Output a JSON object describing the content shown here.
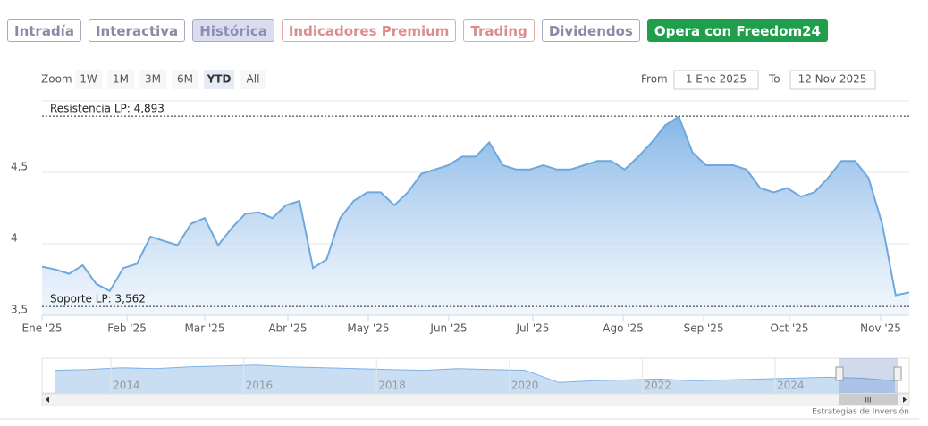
{
  "tabs": [
    "Intradía",
    "Interactiva",
    "Histórica",
    "Indicadores Premium",
    "Trading",
    "Dividendos",
    "Opera con Freedom24"
  ],
  "active_tab": 2,
  "zoom": {
    "label": "Zoom",
    "buttons": [
      "1W",
      "1M",
      "3M",
      "6M",
      "YTD",
      "All"
    ],
    "active": 4
  },
  "range": {
    "from_label": "From",
    "from": "1 Ene 2025",
    "to_label": "To",
    "to": "12 Nov 2025"
  },
  "chart_data": {
    "type": "area",
    "color": "#6fa8dc",
    "values": [
      3.84,
      3.82,
      3.79,
      3.85,
      3.72,
      3.67,
      3.83,
      3.86,
      4.05,
      4.02,
      3.99,
      4.14,
      4.18,
      3.99,
      4.11,
      4.21,
      4.22,
      4.18,
      4.27,
      4.3,
      3.83,
      3.89,
      4.18,
      4.3,
      4.36,
      4.36,
      4.27,
      4.36,
      4.49,
      4.52,
      4.55,
      4.61,
      4.61,
      4.71,
      4.55,
      4.52,
      4.52,
      4.55,
      4.52,
      4.52,
      4.55,
      4.58,
      4.58,
      4.52,
      4.61,
      4.71,
      4.83,
      4.89,
      4.64,
      4.55,
      4.55,
      4.55,
      4.52,
      4.39,
      4.36,
      4.39,
      4.33,
      4.36,
      4.46,
      4.58,
      4.58,
      4.46,
      4.14,
      3.64,
      3.66
    ],
    "xlim": [
      0,
      64
    ],
    "xticks": [
      {
        "value": 0,
        "label": "Ene '25"
      },
      {
        "value": 6.27,
        "label": "Feb '25"
      },
      {
        "value": 12.01,
        "label": "Mar '25"
      },
      {
        "value": 18.14,
        "label": "Abr '25"
      },
      {
        "value": 24.08,
        "label": "May '25"
      },
      {
        "value": 30.02,
        "label": "Jun '25"
      },
      {
        "value": 36.22,
        "label": "Jul '25"
      },
      {
        "value": 42.89,
        "label": "Ago '25"
      },
      {
        "value": 48.83,
        "label": "Sep '25"
      },
      {
        "value": 55.16,
        "label": "Oct '25"
      },
      {
        "value": 61.89,
        "label": "Nov '25"
      }
    ],
    "ylim": [
      3.5,
      5.0
    ],
    "yticks": [
      {
        "value": 3.5,
        "label": "3,5"
      },
      4,
      {
        "value": 4.5,
        "label": "4,5"
      }
    ],
    "grid": true,
    "plot_lines": [
      {
        "label": "Resistencia LP: 4,893",
        "value": 4.893
      },
      {
        "label": "Soporte LP: 3,562",
        "value": 3.562
      }
    ]
  },
  "navigator": {
    "labels": [
      "2014",
      "2016",
      "2018",
      "2020",
      "2022",
      "2024"
    ],
    "values": [
      4.3,
      4.35,
      4.45,
      4.4,
      4.5,
      4.55,
      4.6,
      4.5,
      4.45,
      4.4,
      4.35,
      4.3,
      4.4,
      4.35,
      4.3,
      3.6,
      3.7,
      3.75,
      3.8,
      3.7,
      3.75,
      3.8,
      3.85,
      3.9,
      3.85,
      3.7
    ],
    "ylim": [
      3.0,
      5.0
    ],
    "scroll_label": "III"
  },
  "footer": "Estrategias de Inversión"
}
